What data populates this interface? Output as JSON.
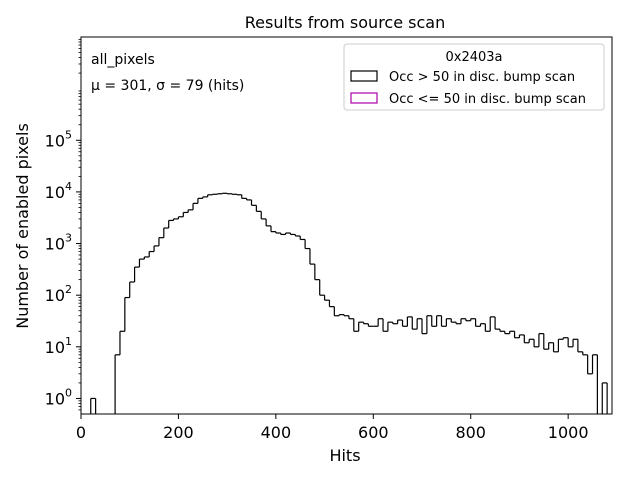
{
  "chart_data": {
    "type": "histogram",
    "title": "Results from source scan",
    "xlabel": "Hits",
    "ylabel": "Number of enabled pixels",
    "xlim": [
      0,
      1090
    ],
    "ylim_log": [
      0.5,
      10000000
    ],
    "yscale": "log",
    "x_ticks": [
      {
        "value": 0,
        "label": "0"
      },
      {
        "value": 200,
        "label": "200"
      },
      {
        "value": 400,
        "label": "400"
      },
      {
        "value": 600,
        "label": "600"
      },
      {
        "value": 800,
        "label": "800"
      },
      {
        "value": 1000,
        "label": "1000"
      }
    ],
    "y_ticks": [
      {
        "value": 1,
        "base": "10",
        "exp": "0"
      },
      {
        "value": 10,
        "base": "10",
        "exp": "1"
      },
      {
        "value": 100,
        "base": "10",
        "exp": "2"
      },
      {
        "value": 1000,
        "base": "10",
        "exp": "3"
      },
      {
        "value": 10000,
        "base": "10",
        "exp": "4"
      },
      {
        "value": 100000,
        "base": "10",
        "exp": "5"
      }
    ],
    "annotations": {
      "line1": "all_pixels",
      "line2": "μ = 301, σ = 79 (hits)"
    },
    "legend": {
      "title": "0x2403a",
      "placement": "top-right",
      "entries": [
        {
          "label": "Occ > 50 in disc. bump scan",
          "color": "#000000"
        },
        {
          "label": "Occ <= 50 in disc. bump scan",
          "color": "#aa00aa"
        }
      ]
    },
    "bin_width": 10,
    "series": [
      {
        "label_ref": 0,
        "bins": [
          [
            20,
            1
          ],
          [
            70,
            7
          ],
          [
            80,
            20
          ],
          [
            90,
            90
          ],
          [
            100,
            180
          ],
          [
            110,
            350
          ],
          [
            120,
            500
          ],
          [
            130,
            550
          ],
          [
            140,
            700
          ],
          [
            150,
            900
          ],
          [
            160,
            1300
          ],
          [
            170,
            2000
          ],
          [
            180,
            2800
          ],
          [
            190,
            3000
          ],
          [
            200,
            3300
          ],
          [
            210,
            4000
          ],
          [
            220,
            4500
          ],
          [
            230,
            6000
          ],
          [
            240,
            7500
          ],
          [
            250,
            8000
          ],
          [
            260,
            8800
          ],
          [
            270,
            9000
          ],
          [
            280,
            9200
          ],
          [
            290,
            9400
          ],
          [
            300,
            9200
          ],
          [
            310,
            9000
          ],
          [
            320,
            8800
          ],
          [
            330,
            7500
          ],
          [
            340,
            7000
          ],
          [
            350,
            5500
          ],
          [
            360,
            4200
          ],
          [
            370,
            3000
          ],
          [
            380,
            2200
          ],
          [
            390,
            1700
          ],
          [
            400,
            1600
          ],
          [
            410,
            1500
          ],
          [
            420,
            1600
          ],
          [
            430,
            1500
          ],
          [
            440,
            1400
          ],
          [
            450,
            1200
          ],
          [
            460,
            800
          ],
          [
            470,
            400
          ],
          [
            480,
            200
          ],
          [
            490,
            100
          ],
          [
            500,
            80
          ],
          [
            510,
            60
          ],
          [
            520,
            40
          ],
          [
            530,
            42
          ],
          [
            540,
            40
          ],
          [
            550,
            35
          ],
          [
            560,
            20
          ],
          [
            570,
            30
          ],
          [
            580,
            28
          ],
          [
            590,
            25
          ],
          [
            600,
            25
          ],
          [
            610,
            35
          ],
          [
            620,
            20
          ],
          [
            630,
            30
          ],
          [
            640,
            28
          ],
          [
            650,
            33
          ],
          [
            660,
            25
          ],
          [
            670,
            38
          ],
          [
            680,
            22
          ],
          [
            690,
            35
          ],
          [
            700,
            18
          ],
          [
            710,
            40
          ],
          [
            720,
            25
          ],
          [
            730,
            40
          ],
          [
            740,
            25
          ],
          [
            750,
            35
          ],
          [
            760,
            30
          ],
          [
            770,
            28
          ],
          [
            780,
            35
          ],
          [
            790,
            32
          ],
          [
            800,
            35
          ],
          [
            810,
            25
          ],
          [
            820,
            28
          ],
          [
            830,
            20
          ],
          [
            840,
            38
          ],
          [
            850,
            22
          ],
          [
            860,
            20
          ],
          [
            870,
            18
          ],
          [
            880,
            20
          ],
          [
            890,
            15
          ],
          [
            900,
            17
          ],
          [
            910,
            12
          ],
          [
            920,
            14
          ],
          [
            930,
            10
          ],
          [
            940,
            18
          ],
          [
            950,
            9
          ],
          [
            960,
            12
          ],
          [
            970,
            8
          ],
          [
            980,
            14
          ],
          [
            990,
            15
          ],
          [
            1000,
            10
          ],
          [
            1010,
            14
          ],
          [
            1020,
            8
          ],
          [
            1030,
            7
          ],
          [
            1040,
            3
          ],
          [
            1050,
            7
          ],
          [
            1060,
            0
          ],
          [
            1070,
            2
          ],
          [
            1080,
            0
          ]
        ]
      }
    ]
  }
}
